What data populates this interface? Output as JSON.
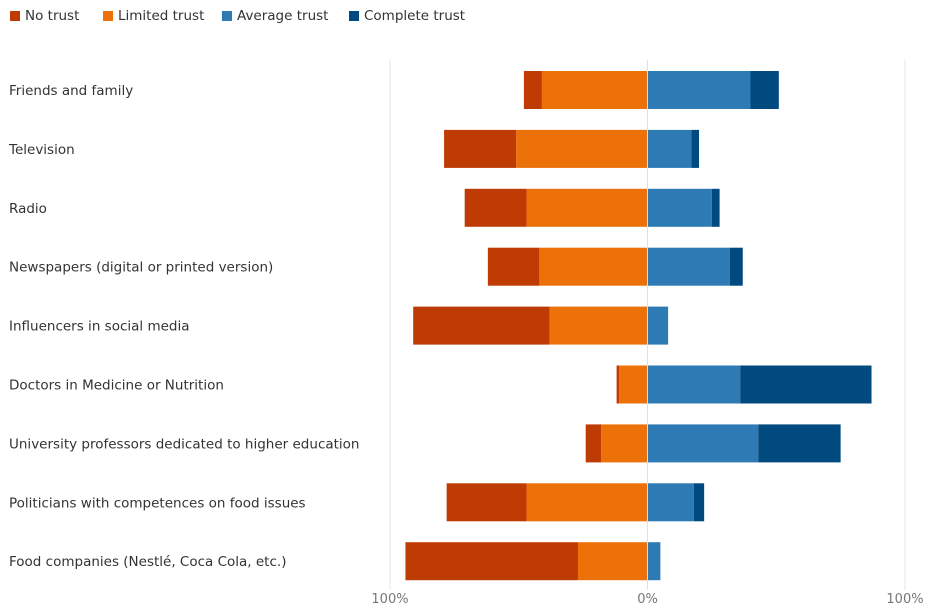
{
  "chart_data": {
    "type": "bar",
    "orientation": "horizontal",
    "stacked": "diverging",
    "title": "",
    "xlabel": "",
    "ylabel": "",
    "xlim": [
      -100,
      100
    ],
    "x_ticks": [
      {
        "value": -100,
        "label": "100%"
      },
      {
        "value": 0,
        "label": "0%"
      },
      {
        "value": 100,
        "label": "100%"
      }
    ],
    "grid": "vertical lines at ticks",
    "legend": {
      "position": "top-left",
      "entries": [
        "No trust",
        "Limited trust",
        "Average trust",
        "Complete trust"
      ]
    },
    "categories": [
      "Friends and family",
      "Television",
      "Radio",
      "Newspapers (digital or printed version)",
      "Influencers in social media",
      "Doctors in Medicine or Nutrition",
      "University professors dedicated to higher education",
      "Politicians with competences on food issues",
      "Food companies (Nestlé, Coca Cola, etc.)"
    ],
    "series": [
      {
        "name": "No trust",
        "color": "#bf3b04",
        "side": "negative",
        "values": [
          7,
          28,
          24,
          20,
          53,
          1,
          6,
          31,
          67
        ]
      },
      {
        "name": "Limited trust",
        "color": "#ec7108",
        "side": "negative",
        "values": [
          41,
          51,
          47,
          42,
          38,
          11,
          18,
          47,
          27
        ]
      },
      {
        "name": "Average trust",
        "color": "#2e7ab5",
        "side": "positive",
        "values": [
          40,
          17,
          25,
          32,
          8,
          36,
          43,
          18,
          5
        ]
      },
      {
        "name": "Complete trust",
        "color": "#004a7f",
        "side": "positive",
        "values": [
          11,
          3,
          3,
          5,
          0,
          51,
          32,
          4,
          0
        ]
      }
    ]
  }
}
